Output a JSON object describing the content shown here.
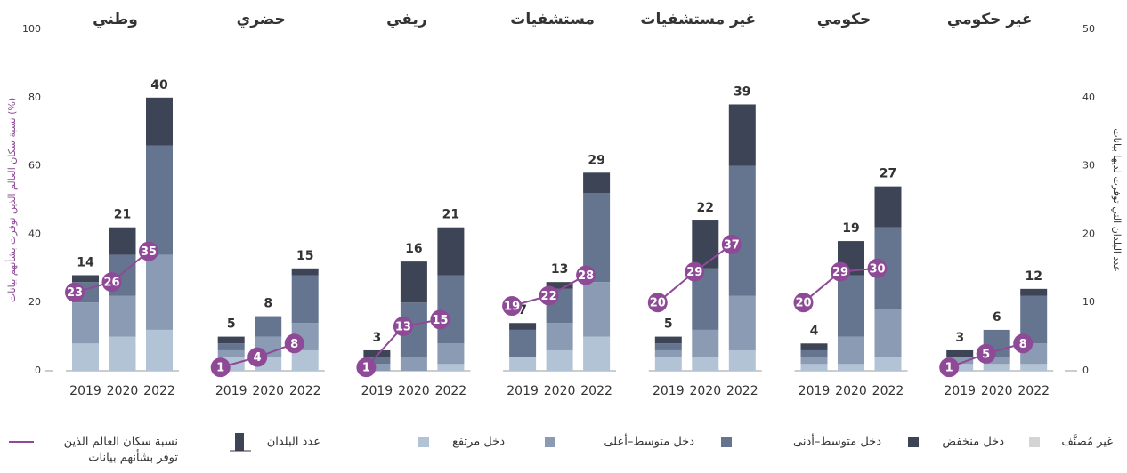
{
  "chart_data": {
    "type": "stacked_bar_line",
    "ylabel": "نسبة سكان العالم الذين توفرت بشأنهم بيانات (%)",
    "y2label": "عدد البلدان التي توفرت لديها بيانات",
    "ylim": [
      0,
      100
    ],
    "yticks": [
      0,
      20,
      40,
      60,
      80,
      100
    ],
    "y2lim": [
      0,
      50
    ],
    "y2ticks": [
      0,
      10,
      20,
      30,
      40,
      50
    ],
    "line_color": "#8e4a97",
    "series": [
      {
        "name": "دخل مرتفع",
        "color": "#b3c3d6"
      },
      {
        "name": "دخل متوسط–أعلى",
        "color": "#8a9bb3"
      },
      {
        "name": "دخل متوسط–أدنى",
        "color": "#65758f"
      },
      {
        "name": "دخل منخفض",
        "color": "#3d4456"
      }
    ],
    "unclassified": {
      "name": "غير مُصنَّف",
      "color": "#d4d4d4"
    },
    "count_label": "عدد البلدان",
    "line_label": [
      "نسبة سكان العالم الذين",
      "توفر بشأنهم بيانات"
    ],
    "groups": [
      {
        "title": "وطني",
        "categories": [
          "2019",
          "2020",
          "2022"
        ],
        "totals": [
          14,
          21,
          40
        ],
        "line": [
          23,
          26,
          35
        ],
        "stacks": [
          [
            4,
            5,
            6
          ],
          [
            6,
            6,
            11
          ],
          [
            3,
            6,
            16
          ],
          [
            1,
            4,
            7
          ]
        ]
      },
      {
        "title": "حضري",
        "categories": [
          "2019",
          "2020",
          "2022"
        ],
        "totals": [
          5,
          8,
          15
        ],
        "line": [
          1,
          4,
          8
        ],
        "stacks": [
          [
            2,
            2,
            3
          ],
          [
            1,
            3,
            4
          ],
          [
            1,
            3,
            7
          ],
          [
            1,
            0,
            1
          ]
        ]
      },
      {
        "title": "ريفي",
        "categories": [
          "2019",
          "2020",
          "2022"
        ],
        "totals": [
          3,
          16,
          21
        ],
        "line": [
          1,
          13,
          15
        ],
        "stacks": [
          [
            0,
            0,
            1
          ],
          [
            1,
            2,
            3
          ],
          [
            1,
            8,
            10
          ],
          [
            1,
            6,
            7
          ]
        ]
      },
      {
        "title": "مستشفيات",
        "categories": [
          "2019",
          "2020",
          "2022"
        ],
        "totals": [
          7,
          13,
          29
        ],
        "line": [
          19,
          22,
          28
        ],
        "stacks": [
          [
            2,
            3,
            5
          ],
          [
            0,
            4,
            8
          ],
          [
            4,
            5,
            13
          ],
          [
            1,
            1,
            3
          ]
        ]
      },
      {
        "title": "غير مستشفيات",
        "categories": [
          "2019",
          "2020",
          "2022"
        ],
        "totals": [
          5,
          22,
          39
        ],
        "line": [
          20,
          29,
          37
        ],
        "stacks": [
          [
            2,
            2,
            3
          ],
          [
            1,
            4,
            8
          ],
          [
            1,
            9,
            19
          ],
          [
            1,
            7,
            9
          ]
        ]
      },
      {
        "title": "حكومي",
        "categories": [
          "2019",
          "2020",
          "2022"
        ],
        "totals": [
          4,
          19,
          27
        ],
        "line": [
          20,
          29,
          30
        ],
        "stacks": [
          [
            1,
            1,
            2
          ],
          [
            1,
            4,
            7
          ],
          [
            1,
            9,
            12
          ],
          [
            1,
            5,
            6
          ]
        ]
      },
      {
        "title": "غير حكومي",
        "categories": [
          "2019",
          "2020",
          "2022"
        ],
        "totals": [
          3,
          6,
          12
        ],
        "line": [
          1,
          5,
          8
        ],
        "stacks": [
          [
            1,
            1,
            1
          ],
          [
            1,
            1,
            3
          ],
          [
            0,
            4,
            7
          ],
          [
            1,
            0,
            1
          ]
        ]
      }
    ]
  }
}
